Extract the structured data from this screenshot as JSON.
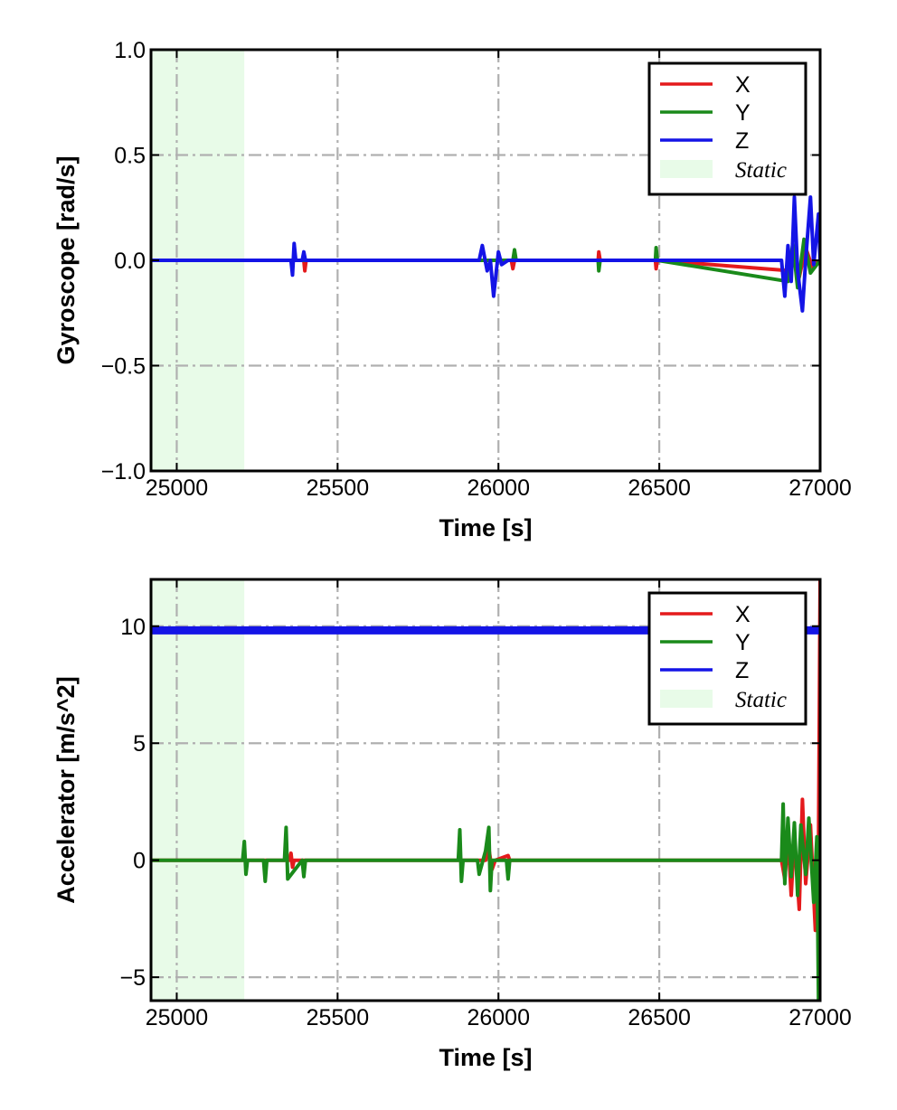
{
  "colors": {
    "x": "#e41a1c",
    "y": "#1a8a1a",
    "z": "#1414e6",
    "static": "#e8fbe8",
    "grid": "#b0b0b0"
  },
  "chart_data": [
    {
      "type": "line",
      "xlabel": "Time [s]",
      "ylabel": "Gyroscope [rad/s]",
      "xlim": [
        24920,
        27000
      ],
      "ylim": [
        -1.0,
        1.0
      ],
      "xticks": [
        25000,
        25500,
        26000,
        26500,
        27000
      ],
      "xtick_labels": [
        "25000",
        "25500",
        "26000",
        "26500",
        "27000"
      ],
      "yticks": [
        -1.0,
        -0.5,
        0.0,
        0.5,
        1.0
      ],
      "ytick_labels": [
        "−1.0",
        "−0.5",
        "0.0",
        "0.5",
        "1.0"
      ],
      "grid": true,
      "legend_position": "top-right",
      "static_region": {
        "label": "Static",
        "x": [
          24920,
          25210
        ]
      },
      "series": [
        {
          "name": "X",
          "x": [
            24920,
            25395,
            25398,
            25402,
            26040,
            26045,
            26050,
            26310,
            26312,
            26316,
            26488,
            26490,
            26494,
            26910,
            26920,
            26935,
            26955,
            26975,
            27000
          ],
          "y": [
            0.0,
            0.0,
            -0.05,
            0.0,
            0.0,
            -0.04,
            0.0,
            0.0,
            0.04,
            0.0,
            0.0,
            -0.04,
            0.0,
            -0.05,
            0.05,
            -0.08,
            0.06,
            -0.03,
            0.0
          ]
        },
        {
          "name": "Y",
          "x": [
            24920,
            26045,
            26050,
            26055,
            26310,
            26312,
            26316,
            26488,
            26490,
            26494,
            26900,
            26915,
            26930,
            26950,
            26970,
            27000
          ],
          "y": [
            0.0,
            0.0,
            0.05,
            0.0,
            0.0,
            -0.05,
            0.0,
            0.0,
            0.06,
            0.0,
            -0.1,
            0.08,
            -0.13,
            0.1,
            -0.06,
            0.0
          ]
        },
        {
          "name": "Z",
          "x": [
            24920,
            25355,
            25360,
            25365,
            25370,
            25390,
            25395,
            25400,
            25940,
            25950,
            25965,
            25975,
            25985,
            26000,
            26010,
            26030,
            26880,
            26890,
            26900,
            26910,
            26920,
            26930,
            26945,
            26955,
            26970,
            26980,
            26995,
            27000
          ],
          "y": [
            0.0,
            0.0,
            -0.07,
            0.08,
            0.0,
            0.0,
            0.04,
            0.0,
            0.0,
            0.07,
            -0.05,
            0.0,
            -0.17,
            0.04,
            -0.02,
            0.0,
            0.0,
            -0.17,
            0.07,
            -0.1,
            0.3,
            -0.05,
            -0.24,
            0.0,
            0.3,
            -0.02,
            0.22,
            0.0
          ]
        }
      ]
    },
    {
      "type": "line",
      "xlabel": "Time [s]",
      "ylabel": "Accelerator [m/s^2]",
      "xlim": [
        24920,
        27000
      ],
      "ylim": [
        -6.0,
        12.0
      ],
      "xticks": [
        25000,
        25500,
        26000,
        26500,
        27000
      ],
      "xtick_labels": [
        "25000",
        "25500",
        "26000",
        "26500",
        "27000"
      ],
      "yticks": [
        -5,
        0,
        5,
        10
      ],
      "ytick_labels": [
        "−5",
        "0",
        "5",
        "10"
      ],
      "grid": true,
      "legend_position": "top-right",
      "static_region": {
        "label": "Static",
        "x": [
          24920,
          25210
        ]
      },
      "series": [
        {
          "name": "X",
          "x": [
            24920,
            25350,
            25355,
            25360,
            25365,
            25960,
            25970,
            25980,
            25990,
            26030,
            26035,
            26880,
            26890,
            26900,
            26910,
            26920,
            26935,
            26945,
            26955,
            26970,
            26985,
            26995,
            27000,
            27002,
            27004
          ],
          "y": [
            0.0,
            0.0,
            0.3,
            -0.3,
            0.0,
            0.0,
            0.5,
            -0.4,
            0.0,
            0.2,
            0.0,
            0.0,
            -0.8,
            1.0,
            -1.5,
            1.0,
            -2.1,
            2.6,
            -1.0,
            1.5,
            -3.0,
            0.5,
            12.0,
            -1.0,
            12.0
          ]
        },
        {
          "name": "Y",
          "x": [
            24920,
            25205,
            25210,
            25215,
            25220,
            25270,
            25275,
            25280,
            25335,
            25340,
            25345,
            25390,
            25395,
            25400,
            25875,
            25880,
            25885,
            25890,
            25935,
            25940,
            25960,
            25970,
            25975,
            25980,
            26025,
            26030,
            26035,
            26880,
            26885,
            26890,
            26900,
            26910,
            26920,
            26930,
            26940,
            26955,
            26965,
            26980,
            26990,
            26995,
            27000
          ],
          "y": [
            0.0,
            0.0,
            0.8,
            -0.6,
            0.0,
            0.0,
            -0.9,
            0.0,
            0.0,
            1.4,
            -0.8,
            0.0,
            -0.7,
            0.0,
            0.0,
            1.3,
            -0.9,
            0.0,
            0.0,
            -0.6,
            0.4,
            1.4,
            -1.3,
            0.0,
            0.0,
            -0.8,
            0.0,
            0.0,
            2.4,
            -1.0,
            1.8,
            -0.7,
            1.6,
            -1.5,
            1.5,
            -0.6,
            1.8,
            -1.8,
            1.0,
            -6.0,
            0.0
          ]
        },
        {
          "name": "Z",
          "x": [
            24920,
            25500,
            26000,
            26500,
            26880,
            26900,
            26950,
            27000
          ],
          "y": [
            9.82,
            9.82,
            9.82,
            9.82,
            9.82,
            9.82,
            9.82,
            9.82
          ]
        }
      ]
    }
  ]
}
